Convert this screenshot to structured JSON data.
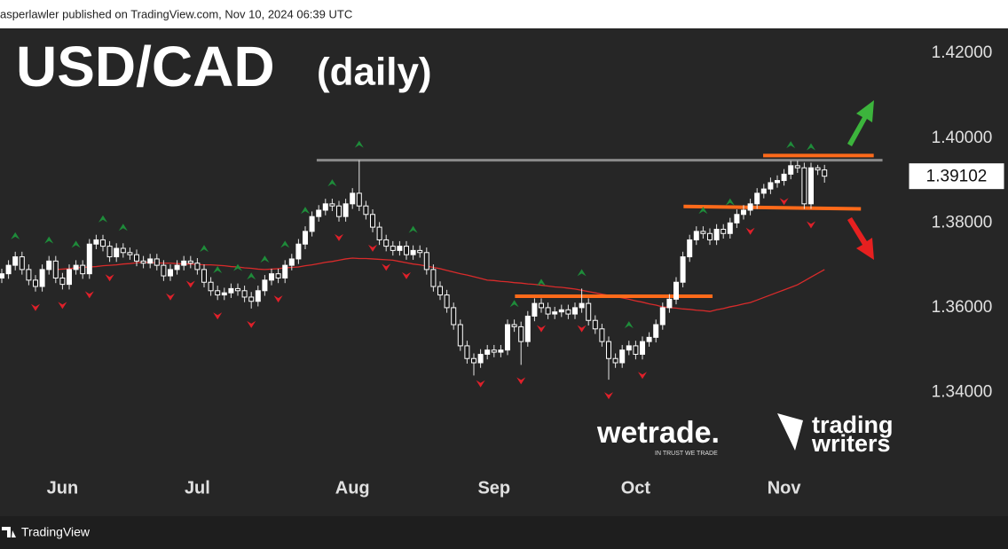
{
  "header": "asperlawler published on TradingView.com, Nov 10, 2024 06:39 UTC",
  "footer": "TradingView",
  "logos": {
    "wetrade": "wetrade.",
    "wetrade_tagline": "IN TRUST WE TRADE",
    "tw_line1": "trading",
    "tw_line2": "writers"
  },
  "chart_data": {
    "type": "candlestick",
    "title": "USD/CAD",
    "subtitle": "(daily)",
    "ylim": [
      1.3108,
      1.4259
    ],
    "yticks": [
      {
        "value": 1.42,
        "label": "1.42000"
      },
      {
        "value": 1.4,
        "label": "1.40000"
      },
      {
        "value": 1.38,
        "label": "1.38000"
      },
      {
        "value": 1.36,
        "label": "1.36000"
      },
      {
        "value": 1.34,
        "label": "1.34000"
      }
    ],
    "up_color": "#ffffff",
    "down_color": "#1a1a1a",
    "wick_color": "#e6e6e6",
    "categories": [
      null,
      null,
      null,
      null,
      null,
      null,
      null,
      null,
      null,
      "Jun",
      null,
      null,
      null,
      null,
      null,
      null,
      null,
      null,
      null,
      null,
      null,
      null,
      null,
      null,
      null,
      null,
      null,
      null,
      null,
      "Jul",
      null,
      null,
      null,
      null,
      null,
      null,
      null,
      null,
      null,
      null,
      null,
      null,
      null,
      null,
      null,
      null,
      null,
      null,
      null,
      null,
      null,
      null,
      "Aug",
      null,
      null,
      null,
      null,
      null,
      null,
      null,
      null,
      null,
      null,
      null,
      null,
      null,
      null,
      null,
      null,
      null,
      null,
      null,
      null,
      "Sep",
      null,
      null,
      null,
      null,
      null,
      null,
      null,
      null,
      null,
      null,
      null,
      null,
      null,
      null,
      null,
      null,
      null,
      null,
      null,
      null,
      "Oct",
      null,
      null,
      null,
      null,
      null,
      null,
      null,
      null,
      null,
      null,
      null,
      null,
      null,
      null,
      null,
      null,
      null,
      null,
      null,
      null,
      null,
      "Nov",
      null,
      null,
      null,
      null,
      null,
      null
    ],
    "open": [
      1.367,
      1.368,
      1.37,
      1.372,
      1.369,
      1.3665,
      1.365,
      1.369,
      1.371,
      1.367,
      1.3655,
      1.369,
      1.37,
      1.368,
      1.375,
      1.376,
      1.3745,
      1.372,
      1.374,
      1.373,
      1.3725,
      1.371,
      1.3705,
      1.3715,
      1.37,
      1.3675,
      1.369,
      1.37,
      1.371,
      1.3705,
      1.369,
      1.366,
      1.364,
      1.363,
      1.3635,
      1.3645,
      1.364,
      1.3625,
      1.3615,
      1.364,
      1.3665,
      1.368,
      1.367,
      1.37,
      1.3715,
      1.375,
      1.378,
      1.3815,
      1.383,
      1.3845,
      1.384,
      1.3815,
      1.3845,
      1.387,
      1.384,
      1.382,
      1.379,
      1.376,
      1.3745,
      1.3735,
      1.3745,
      1.3725,
      1.3735,
      1.373,
      1.369,
      1.365,
      1.363,
      1.36,
      1.356,
      1.351,
      1.348,
      1.347,
      1.349,
      1.35,
      1.3495,
      1.35,
      1.356,
      1.3555,
      1.352,
      1.358,
      1.361,
      1.36,
      1.3585,
      1.359,
      1.3595,
      1.3585,
      1.36,
      1.361,
      1.357,
      1.355,
      1.352,
      1.348,
      1.347,
      1.35,
      1.351,
      1.349,
      1.352,
      1.353,
      1.356,
      1.36,
      1.362,
      1.366,
      1.372,
      1.376,
      1.378,
      1.3775,
      1.376,
      1.3785,
      1.3775,
      1.38,
      1.382,
      1.383,
      1.3845,
      1.387,
      1.388,
      1.3895,
      1.39,
      1.3915,
      1.3935,
      1.393,
      1.3845,
      1.393,
      1.3925
    ],
    "high": [
      1.3692,
      1.3712,
      1.3732,
      1.3732,
      1.3702,
      1.3677,
      1.3702,
      1.3722,
      1.3722,
      1.3682,
      1.3702,
      1.3712,
      1.3712,
      1.3762,
      1.3772,
      1.3772,
      1.3757,
      1.3752,
      1.3752,
      1.3742,
      1.3737,
      1.3722,
      1.3727,
      1.3727,
      1.3712,
      1.3702,
      1.3712,
      1.3722,
      1.3722,
      1.3717,
      1.3702,
      1.3672,
      1.3652,
      1.3647,
      1.3657,
      1.3657,
      1.3652,
      1.3637,
      1.3652,
      1.3677,
      1.3692,
      1.3692,
      1.3712,
      1.3727,
      1.3762,
      1.3792,
      1.3827,
      1.3842,
      1.3857,
      1.3857,
      1.3852,
      1.3857,
      1.3882,
      1.3948,
      1.3852,
      1.3832,
      1.3802,
      1.3772,
      1.3757,
      1.3757,
      1.3757,
      1.3747,
      1.3747,
      1.3742,
      1.3702,
      1.3662,
      1.3642,
      1.3612,
      1.3572,
      1.3522,
      1.3492,
      1.3502,
      1.3512,
      1.3512,
      1.3512,
      1.3572,
      1.3572,
      1.3567,
      1.3592,
      1.3622,
      1.3622,
      1.3612,
      1.3602,
      1.3607,
      1.3607,
      1.3612,
      1.3645,
      1.3622,
      1.3582,
      1.3562,
      1.3532,
      1.3492,
      1.3512,
      1.3522,
      1.3522,
      1.3532,
      1.3542,
      1.3572,
      1.3612,
      1.3632,
      1.3672,
      1.3732,
      1.3772,
      1.3792,
      1.3792,
      1.3787,
      1.3797,
      1.3797,
      1.3812,
      1.3832,
      1.3842,
      1.3857,
      1.3882,
      1.3892,
      1.3907,
      1.3912,
      1.3927,
      1.3947,
      1.3947,
      1.3942,
      1.3942,
      1.3937,
      1.3937
    ],
    "low": [
      1.3658,
      1.3668,
      1.3688,
      1.3678,
      1.3653,
      1.3638,
      1.3638,
      1.3678,
      1.3658,
      1.3643,
      1.3643,
      1.3678,
      1.3668,
      1.3668,
      1.3738,
      1.3733,
      1.3708,
      1.3708,
      1.3718,
      1.3713,
      1.3698,
      1.3693,
      1.3693,
      1.3688,
      1.3663,
      1.3663,
      1.3678,
      1.3688,
      1.3693,
      1.3678,
      1.3648,
      1.3628,
      1.3618,
      1.3618,
      1.3623,
      1.3628,
      1.3613,
      1.3598,
      1.3603,
      1.3628,
      1.3653,
      1.3658,
      1.3658,
      1.3688,
      1.3703,
      1.3738,
      1.3768,
      1.3803,
      1.3818,
      1.3828,
      1.3803,
      1.3803,
      1.3833,
      1.3828,
      1.3808,
      1.3778,
      1.3748,
      1.3733,
      1.3723,
      1.3723,
      1.3713,
      1.3713,
      1.3718,
      1.3678,
      1.3638,
      1.3618,
      1.3588,
      1.3548,
      1.3498,
      1.3468,
      1.344,
      1.3458,
      1.3478,
      1.3483,
      1.3483,
      1.3488,
      1.3543,
      1.3465,
      1.3508,
      1.3568,
      1.3588,
      1.3573,
      1.3573,
      1.3578,
      1.3573,
      1.3573,
      1.3588,
      1.3558,
      1.3538,
      1.3508,
      1.343,
      1.3458,
      1.3458,
      1.3488,
      1.3478,
      1.3478,
      1.3508,
      1.3518,
      1.3548,
      1.3588,
      1.3608,
      1.3648,
      1.3708,
      1.3748,
      1.3763,
      1.3748,
      1.3748,
      1.3763,
      1.3763,
      1.3788,
      1.3808,
      1.3818,
      1.3833,
      1.3858,
      1.3868,
      1.3883,
      1.3888,
      1.3903,
      1.3918,
      1.3833,
      1.3833,
      1.3913,
      1.3895
    ],
    "close": [
      1.368,
      1.37,
      1.372,
      1.369,
      1.3665,
      1.365,
      1.369,
      1.371,
      1.367,
      1.3655,
      1.369,
      1.37,
      1.368,
      1.375,
      1.376,
      1.3745,
      1.372,
      1.374,
      1.373,
      1.3725,
      1.371,
      1.3705,
      1.3715,
      1.37,
      1.3675,
      1.369,
      1.37,
      1.371,
      1.3705,
      1.369,
      1.366,
      1.364,
      1.363,
      1.3635,
      1.3645,
      1.364,
      1.3625,
      1.3615,
      1.364,
      1.3665,
      1.368,
      1.367,
      1.37,
      1.3715,
      1.375,
      1.378,
      1.3815,
      1.383,
      1.3845,
      1.384,
      1.3815,
      1.3845,
      1.387,
      1.384,
      1.382,
      1.379,
      1.376,
      1.3745,
      1.3735,
      1.3745,
      1.3725,
      1.3735,
      1.373,
      1.369,
      1.365,
      1.363,
      1.36,
      1.356,
      1.351,
      1.348,
      1.347,
      1.349,
      1.35,
      1.3495,
      1.35,
      1.356,
      1.3555,
      1.352,
      1.358,
      1.361,
      1.36,
      1.3585,
      1.359,
      1.3595,
      1.3585,
      1.36,
      1.361,
      1.357,
      1.355,
      1.352,
      1.348,
      1.347,
      1.35,
      1.351,
      1.349,
      1.352,
      1.353,
      1.356,
      1.36,
      1.362,
      1.366,
      1.372,
      1.376,
      1.378,
      1.3775,
      1.376,
      1.3785,
      1.3775,
      1.38,
      1.382,
      1.383,
      1.3845,
      1.387,
      1.388,
      1.3895,
      1.39,
      1.3915,
      1.3935,
      1.393,
      1.3845,
      1.393,
      1.3925,
      1.39102
    ],
    "moving_average": {
      "color": "#d92b2b",
      "values": [
        null,
        null,
        null,
        null,
        null,
        null,
        null,
        null,
        1.369,
        1.3691,
        1.3692,
        1.3694,
        1.3695,
        1.3696,
        1.3697,
        1.3699,
        1.37,
        1.3701,
        1.3703,
        1.3704,
        1.3706,
        1.3707,
        1.3706,
        1.3706,
        1.3705,
        1.3705,
        1.3704,
        1.3703,
        1.3703,
        1.3702,
        1.3701,
        1.3701,
        1.37,
        1.3699,
        1.3697,
        1.3696,
        1.3694,
        1.3693,
        1.3691,
        1.369,
        1.3691,
        1.3692,
        1.3694,
        1.3695,
        1.3696,
        1.3699,
        1.3701,
        1.3704,
        1.3707,
        1.3709,
        1.3712,
        1.3715,
        1.3717,
        1.3716,
        1.3716,
        1.3715,
        1.3714,
        1.3713,
        1.3712,
        1.3709,
        1.3706,
        1.3703,
        1.3701,
        1.3698,
        1.3695,
        1.3692,
        1.3688,
        1.3684,
        1.368,
        1.3677,
        1.3673,
        1.3669,
        1.3665,
        1.3664,
        1.3662,
        1.3661,
        1.3659,
        1.3658,
        1.3656,
        1.3655,
        1.3653,
        1.3651,
        1.3649,
        1.3648,
        1.3646,
        1.3644,
        1.3641,
        1.3638,
        1.3635,
        1.3632,
        1.3629,
        1.3626,
        1.3623,
        1.362,
        1.3616,
        1.3613,
        1.3609,
        1.3606,
        1.3602,
        1.36,
        1.3599,
        1.3597,
        1.3596,
        1.3594,
        1.3593,
        1.3591,
        1.3595,
        1.3598,
        1.3602,
        1.3605,
        1.3609,
        1.3612,
        1.3618,
        1.3624,
        1.363,
        1.3636,
        1.3642,
        1.3648,
        1.3654,
        1.3663,
        1.3672,
        1.3681,
        1.369
      ]
    },
    "fractals_up": {
      "color": "#1e8c3a",
      "indices": [
        2,
        7,
        11,
        15,
        18,
        30,
        32,
        35,
        37,
        39,
        42,
        45,
        49,
        53,
        61,
        76,
        80,
        86,
        93,
        104,
        108,
        117,
        120
      ]
    },
    "fractals_down": {
      "color": "#e0202a",
      "indices": [
        5,
        9,
        13,
        16,
        25,
        28,
        32,
        37,
        41,
        50,
        55,
        57,
        60,
        71,
        77,
        80,
        86,
        90,
        95,
        111,
        116,
        120
      ]
    },
    "levels": [
      {
        "color": "#8a8a8a",
        "y": [
          1.3948,
          1.3948
        ],
        "x": [
          46.7,
          130.6
        ]
      },
      {
        "color": "#ff6a1a",
        "y": [
          1.3959,
          1.3959
        ],
        "x": [
          112.9,
          129.3
        ]
      },
      {
        "color": "#ff6a1a",
        "y": [
          1.3839,
          1.3833
        ],
        "x": [
          101.1,
          127.4
        ]
      },
      {
        "color": "#ff6a1a",
        "y": [
          1.3627,
          1.3627
        ],
        "x": [
          76.1,
          105.4
        ]
      }
    ]
  }
}
